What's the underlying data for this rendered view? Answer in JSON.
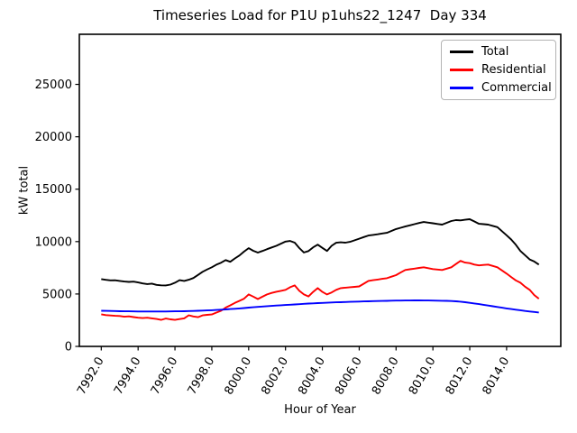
{
  "figure": {
    "background": "#ffffff",
    "title": "Timeseries Load for P1U p1uhs22_1247  Day 334",
    "xlabel": "Hour of Year",
    "ylabel": "kW total"
  },
  "chart_data": {
    "type": "line",
    "title": "Timeseries Load for P1U p1uhs22_1247  Day 334",
    "xlabel": "Hour of Year",
    "ylabel": "kW total",
    "grid": false,
    "legend_position": "upper right",
    "xlim": [
      7990.81,
      8016.94
    ],
    "ylim": [
      0,
      29780
    ],
    "xticks": {
      "values": [
        7992,
        7994,
        7996,
        7998,
        8000,
        8002,
        8004,
        8006,
        8008,
        8010,
        8012,
        8014
      ],
      "labels": [
        "7992.0",
        "7994.0",
        "7996.0",
        "7998.0",
        "8000.0",
        "8002.0",
        "8004.0",
        "8006.0",
        "8008.0",
        "8010.0",
        "8012.0",
        "8014.0"
      ],
      "rotation_deg": 60
    },
    "yticks": {
      "values": [
        0,
        5000,
        10000,
        15000,
        20000,
        25000
      ],
      "labels": [
        "0",
        "5000",
        "10000",
        "15000",
        "20000",
        "25000"
      ]
    },
    "x": [
      7992.0,
      7992.25,
      7992.5,
      7992.75,
      7993.0,
      7993.25,
      7993.5,
      7993.75,
      7994.0,
      7994.25,
      7994.5,
      7994.75,
      7995.0,
      7995.25,
      7995.5,
      7995.75,
      7996.0,
      7996.25,
      7996.5,
      7996.75,
      7997.0,
      7997.25,
      7997.5,
      7997.75,
      7998.0,
      7998.25,
      7998.5,
      7998.75,
      7999.0,
      7999.25,
      7999.5,
      7999.75,
      8000.0,
      8000.25,
      8000.5,
      8000.75,
      8001.0,
      8001.25,
      8001.5,
      8001.75,
      8002.0,
      8002.25,
      8002.5,
      8002.75,
      8003.0,
      8003.25,
      8003.5,
      8003.75,
      8004.0,
      8004.25,
      8004.5,
      8004.75,
      8005.0,
      8005.25,
      8005.5,
      8005.75,
      8006.0,
      8006.25,
      8006.5,
      8006.75,
      8007.0,
      8007.25,
      8007.5,
      8007.75,
      8008.0,
      8008.25,
      8008.5,
      8008.75,
      8009.0,
      8009.25,
      8009.5,
      8009.75,
      8010.0,
      8010.25,
      8010.5,
      8010.75,
      8011.0,
      8011.25,
      8011.5,
      8011.75,
      8012.0,
      8012.25,
      8012.5,
      8012.75,
      8013.0,
      8013.25,
      8013.5,
      8013.75,
      8014.0,
      8014.25,
      8014.5,
      8014.75,
      8015.0,
      8015.25,
      8015.5,
      8015.75
    ],
    "series": [
      {
        "name": "Total",
        "color": "#000000",
        "values": [
          6420,
          6350,
          6300,
          6310,
          6250,
          6190,
          6150,
          6180,
          6100,
          6010,
          5950,
          5990,
          5870,
          5830,
          5820,
          5900,
          6080,
          6320,
          6250,
          6360,
          6520,
          6820,
          7120,
          7340,
          7550,
          7800,
          7990,
          8240,
          8070,
          8390,
          8680,
          9050,
          9370,
          9120,
          8950,
          9110,
          9280,
          9440,
          9600,
          9800,
          10000,
          10060,
          9900,
          9380,
          8960,
          9100,
          9450,
          9710,
          9400,
          9110,
          9600,
          9890,
          9930,
          9900,
          9975,
          10120,
          10280,
          10430,
          10580,
          10640,
          10700,
          10780,
          10840,
          11020,
          11200,
          11320,
          11440,
          11550,
          11660,
          11770,
          11870,
          11810,
          11750,
          11680,
          11620,
          11790,
          11960,
          12050,
          12020,
          12080,
          12140,
          11920,
          11700,
          11660,
          11620,
          11500,
          11380,
          10990,
          10600,
          10200,
          9700,
          9110,
          8700,
          8300,
          8100,
          7810
        ]
      },
      {
        "name": "Residential",
        "color": "#ff0000",
        "values": [
          3060,
          2990,
          2950,
          2920,
          2900,
          2830,
          2870,
          2800,
          2740,
          2700,
          2740,
          2680,
          2620,
          2530,
          2660,
          2580,
          2530,
          2610,
          2680,
          2970,
          2860,
          2790,
          2960,
          3010,
          3050,
          3230,
          3400,
          3700,
          3920,
          4150,
          4350,
          4550,
          4960,
          4750,
          4520,
          4740,
          4960,
          5100,
          5220,
          5300,
          5400,
          5650,
          5820,
          5300,
          4960,
          4770,
          5200,
          5560,
          5200,
          4960,
          5150,
          5400,
          5560,
          5600,
          5650,
          5680,
          5720,
          5980,
          6250,
          6320,
          6380,
          6450,
          6510,
          6650,
          6800,
          7050,
          7290,
          7360,
          7420,
          7490,
          7550,
          7460,
          7380,
          7330,
          7290,
          7420,
          7550,
          7860,
          8160,
          8000,
          7940,
          7810,
          7730,
          7770,
          7810,
          7680,
          7550,
          7250,
          6950,
          6620,
          6300,
          6080,
          5700,
          5400,
          4900,
          4550
        ]
      },
      {
        "name": "Commercial",
        "color": "#0000ff",
        "values": [
          3400,
          3390,
          3380,
          3370,
          3360,
          3350,
          3345,
          3340,
          3335,
          3330,
          3330,
          3330,
          3330,
          3330,
          3335,
          3340,
          3345,
          3350,
          3360,
          3370,
          3385,
          3400,
          3420,
          3435,
          3455,
          3480,
          3505,
          3530,
          3560,
          3590,
          3625,
          3660,
          3700,
          3735,
          3770,
          3800,
          3835,
          3865,
          3895,
          3925,
          3950,
          3980,
          4005,
          4030,
          4060,
          4085,
          4105,
          4130,
          4150,
          4170,
          4190,
          4205,
          4220,
          4235,
          4250,
          4265,
          4280,
          4295,
          4305,
          4320,
          4330,
          4340,
          4350,
          4360,
          4370,
          4375,
          4380,
          4385,
          4390,
          4390,
          4385,
          4380,
          4375,
          4365,
          4355,
          4345,
          4330,
          4300,
          4270,
          4220,
          4160,
          4100,
          4040,
          3970,
          3900,
          3830,
          3760,
          3690,
          3620,
          3560,
          3500,
          3450,
          3380,
          3330,
          3290,
          3240
        ]
      }
    ]
  }
}
